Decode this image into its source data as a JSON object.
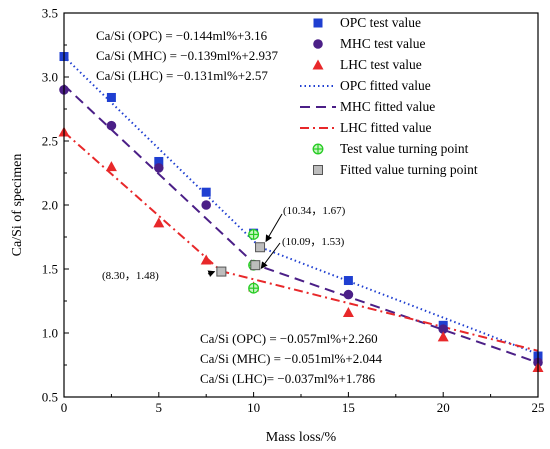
{
  "chart_data": {
    "type": "scatter",
    "xlabel": "Mass loss/%",
    "ylabel": "Ca/Si of specimen",
    "xlim": [
      0,
      25
    ],
    "ylim": [
      0.5,
      3.5
    ],
    "xticks": [
      "0",
      "5",
      "10",
      "15",
      "20",
      "25"
    ],
    "yticks": [
      "0.5",
      "1.0",
      "1.5",
      "2.0",
      "2.5",
      "3.0",
      "3.5"
    ],
    "colors": {
      "OPC": "#1f3fd1",
      "MHC": "#4b1f87",
      "LHC": "#e8282a",
      "tp_test": "#27cc24",
      "tp_fit": "#8c8c8c"
    },
    "series": [
      {
        "name": "OPC test value",
        "marker": "square",
        "color": "#1f3fd1",
        "x": [
          0,
          2.5,
          5,
          7.5,
          10,
          15,
          20,
          25
        ],
        "y": [
          3.16,
          2.84,
          2.34,
          2.1,
          1.78,
          1.41,
          1.06,
          0.82
        ]
      },
      {
        "name": "MHC test value",
        "marker": "circle",
        "color": "#4b1f87",
        "x": [
          0,
          2.5,
          5,
          7.5,
          10,
          15,
          20,
          25
        ],
        "y": [
          2.9,
          2.62,
          2.29,
          2.0,
          1.53,
          1.3,
          1.03,
          0.77
        ]
      },
      {
        "name": "LHC test value",
        "marker": "triangle",
        "color": "#e8282a",
        "x": [
          0,
          2.5,
          5,
          7.5,
          10,
          15,
          20,
          25
        ],
        "y": [
          2.57,
          2.3,
          1.86,
          1.57,
          1.36,
          1.16,
          0.97,
          0.73
        ]
      },
      {
        "name": "Test value turning point",
        "marker": "crosscircle",
        "color": "#27cc24",
        "x": [
          10,
          10,
          10
        ],
        "y": [
          1.77,
          1.53,
          1.35
        ]
      },
      {
        "name": "Fitted value turning point",
        "marker": "graysquare",
        "color": "#8c8c8c",
        "x": [
          10.34,
          10.09,
          8.3
        ],
        "y": [
          1.67,
          1.53,
          1.48
        ]
      }
    ],
    "fits": [
      {
        "name": "OPC fitted value",
        "style": "dotted",
        "color": "#1f3fd1",
        "turning_x": 10.34,
        "seg1": {
          "slope": -0.144,
          "intercept": 3.16
        },
        "seg2": {
          "slope": -0.057,
          "intercept": 2.26
        }
      },
      {
        "name": "MHC fitted value",
        "style": "dashed",
        "color": "#4b1f87",
        "turning_x": 10.09,
        "seg1": {
          "slope": -0.139,
          "intercept": 2.937
        },
        "seg2": {
          "slope": -0.051,
          "intercept": 2.044
        }
      },
      {
        "name": "LHC fitted value",
        "style": "dashdot",
        "color": "#e8282a",
        "turning_x": 8.3,
        "seg1": {
          "slope": -0.131,
          "intercept": 2.57
        },
        "seg2": {
          "slope": -0.037,
          "intercept": 1.786
        }
      }
    ],
    "equations_top": [
      "Ca/Si (OPC) = −0.144ml%+3.16",
      "Ca/Si (MHC) = −0.139ml%+2.937",
      "Ca/Si (LHC) = −0.131ml%+2.57"
    ],
    "equations_bottom": [
      "Ca/Si (OPC) = −0.057ml%+2.260",
      "Ca/Si (MHC) = −0.051ml%+2.044",
      "Ca/Si (LHC)= −0.037ml%+1.786"
    ],
    "annotations": [
      {
        "text": "(10.34，1.67)",
        "x": 10.34,
        "y": 1.67
      },
      {
        "text": "(10.09，1.53)",
        "x": 10.09,
        "y": 1.53
      },
      {
        "text": "(8.30，1.48)",
        "x": 8.3,
        "y": 1.48
      }
    ],
    "legend": {
      "position": "top-right",
      "entries": [
        "OPC test value",
        "MHC test value",
        "LHC test value",
        "OPC fitted value",
        "MHC fitted value",
        "LHC fitted value",
        "Test value turning point",
        "Fitted value turning point"
      ]
    }
  }
}
